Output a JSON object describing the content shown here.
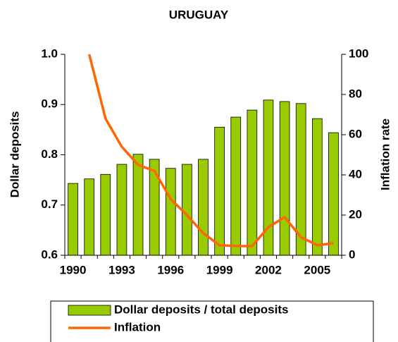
{
  "chart_data": {
    "type": "bar-line",
    "title": "URUGUAY",
    "y_label": "Dollar deposits",
    "y2_label": "Inflation rate",
    "categories": [
      "1990",
      null,
      null,
      "1993",
      null,
      null,
      "1996",
      null,
      null,
      "1999",
      null,
      null,
      "2002",
      null,
      null,
      "2005",
      null
    ],
    "series": [
      {
        "name": "Dollar deposits / total deposits",
        "type": "bar",
        "color": "#99cc00",
        "values": [
          0.743,
          0.752,
          0.761,
          0.781,
          0.801,
          0.791,
          0.773,
          0.781,
          0.791,
          0.855,
          0.875,
          0.889,
          0.909,
          0.906,
          0.902,
          0.872,
          0.844
        ]
      },
      {
        "name": "Inflation",
        "type": "line",
        "color": "#ff6600",
        "axis": "y2",
        "values": [
          null,
          100,
          68,
          54,
          45,
          42,
          28,
          20,
          11,
          5,
          4.6,
          4.5,
          14,
          19,
          9,
          5,
          6
        ]
      }
    ],
    "ylim": [
      0.6,
      1.0
    ],
    "yticks": [
      0.6,
      0.7,
      0.8,
      0.9,
      {
        "value": 1.0,
        "label": "1.0"
      }
    ],
    "y2lim": [
      0,
      100
    ],
    "y2ticks": [
      0,
      20,
      40,
      60,
      80,
      100
    ]
  }
}
